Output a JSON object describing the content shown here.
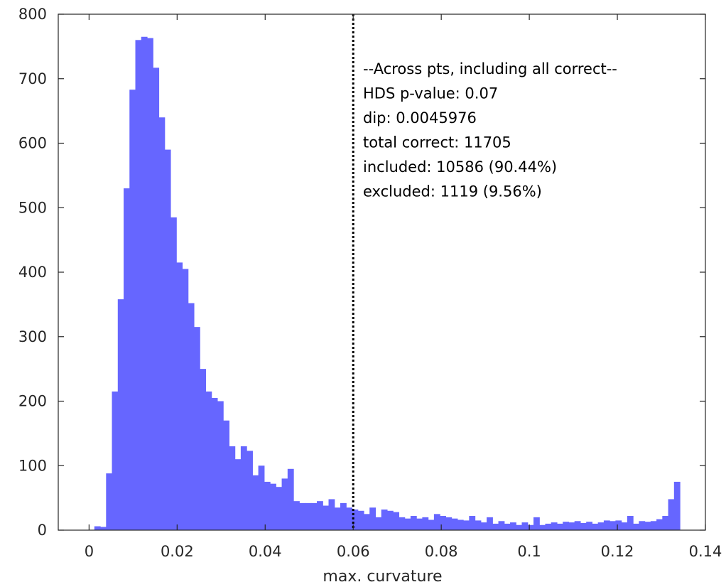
{
  "chart_data": {
    "type": "bar",
    "subtype": "histogram",
    "title": "",
    "xlabel": "max. curvature",
    "ylabel": "",
    "xlim": [
      -0.007,
      0.14
    ],
    "ylim": [
      0,
      800
    ],
    "x_ticks": [
      0,
      0.02,
      0.04,
      0.06,
      0.08,
      0.1,
      0.12,
      0.14
    ],
    "x_tick_labels": [
      "0",
      "0.02",
      "0.04",
      "0.06",
      "0.08",
      "0.1",
      "0.12",
      "0.14"
    ],
    "y_ticks": [
      0,
      100,
      200,
      300,
      400,
      500,
      600,
      700,
      800
    ],
    "y_tick_labels": [
      "0",
      "100",
      "200",
      "300",
      "400",
      "500",
      "600",
      "700",
      "800"
    ],
    "bin_start": 0.0012,
    "bin_width": 0.00133,
    "values": [
      6,
      5,
      88,
      215,
      358,
      530,
      683,
      760,
      765,
      763,
      717,
      640,
      590,
      485,
      415,
      405,
      352,
      315,
      250,
      215,
      205,
      200,
      170,
      130,
      110,
      130,
      123,
      85,
      100,
      75,
      72,
      67,
      80,
      95,
      45,
      42,
      42,
      42,
      45,
      38,
      48,
      35,
      42,
      35,
      32,
      30,
      25,
      35,
      20,
      32,
      30,
      28,
      20,
      18,
      22,
      18,
      20,
      16,
      25,
      22,
      20,
      18,
      16,
      15,
      22,
      15,
      12,
      20,
      10,
      14,
      10,
      12,
      8,
      12,
      8,
      20,
      8,
      10,
      12,
      10,
      13,
      12,
      14,
      11,
      13,
      10,
      12,
      15,
      14,
      15,
      12,
      22,
      10,
      14,
      13,
      14,
      17,
      22,
      48,
      75
    ],
    "bar_color": "#6666ff",
    "reference_line": {
      "x": 0.06,
      "style": "dotted",
      "color": "#000000"
    },
    "grid": false,
    "annotation": [
      "--Across pts, including all correct--",
      "HDS p-value: 0.07",
      "dip: 0.0045976",
      "total correct: 11705",
      "included: 10586 (90.44%)",
      "excluded: 1119 (9.56%)"
    ]
  }
}
